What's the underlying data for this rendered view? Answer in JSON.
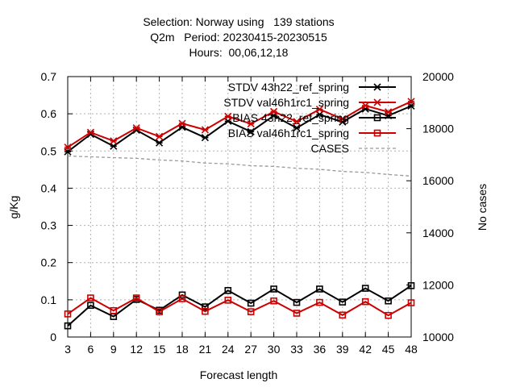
{
  "chart_data": {
    "type": "line",
    "title_lines": [
      "Selection: Norway using   139 stations",
      "Q2m   Period: 20230415-20230515",
      "Hours:  00,06,12,18"
    ],
    "xlabel": "Forecast length",
    "ylabel": "g/Kg",
    "y2label": "No cases",
    "x": [
      3,
      6,
      9,
      12,
      15,
      18,
      21,
      24,
      27,
      30,
      33,
      36,
      39,
      42,
      45,
      48
    ],
    "xlim": [
      3,
      48
    ],
    "ylim": [
      0,
      0.7
    ],
    "y2lim": [
      10000,
      20000
    ],
    "yticks": [
      "0",
      "0.1",
      "0.2",
      "0.3",
      "0.4",
      "0.5",
      "0.6",
      "0.7"
    ],
    "y2ticks": [
      "10000",
      "12000",
      "14000",
      "16000",
      "18000",
      "20000"
    ],
    "grid": true,
    "legend_position": "top-right",
    "series": [
      {
        "name": "STDV 43h22_ref_spring",
        "color": "#000000",
        "marker": "star",
        "axis": "y1",
        "values": [
          0.498,
          0.545,
          0.513,
          0.556,
          0.522,
          0.564,
          0.536,
          0.58,
          0.552,
          0.595,
          0.562,
          0.598,
          0.578,
          0.613,
          0.595,
          0.621
        ]
      },
      {
        "name": "STDV val46h1rc1_spring",
        "color": "#cc0000",
        "marker": "star",
        "axis": "y1",
        "values": [
          0.51,
          0.55,
          0.527,
          0.562,
          0.539,
          0.574,
          0.557,
          0.593,
          0.573,
          0.606,
          0.579,
          0.612,
          0.586,
          0.622,
          0.605,
          0.633
        ]
      },
      {
        "name": "BIAS 43h22_ref_spring",
        "color": "#000000",
        "marker": "square",
        "axis": "y1",
        "values": [
          0.03,
          0.085,
          0.055,
          0.101,
          0.072,
          0.113,
          0.081,
          0.125,
          0.091,
          0.129,
          0.093,
          0.129,
          0.094,
          0.131,
          0.097,
          0.138
        ]
      },
      {
        "name": "BIAS val46h1rc1_spring",
        "color": "#cc0000",
        "marker": "square",
        "axis": "y1",
        "values": [
          0.062,
          0.105,
          0.071,
          0.105,
          0.068,
          0.103,
          0.069,
          0.099,
          0.068,
          0.097,
          0.064,
          0.093,
          0.059,
          0.095,
          0.058,
          0.092
        ]
      },
      {
        "name": "CASES",
        "color": "#999999",
        "marker": "none",
        "dash": true,
        "axis": "y2",
        "values": [
          16950,
          16920,
          16890,
          16860,
          16800,
          16760,
          16680,
          16650,
          16580,
          16550,
          16480,
          16440,
          16360,
          16320,
          16240,
          16180
        ]
      }
    ]
  }
}
